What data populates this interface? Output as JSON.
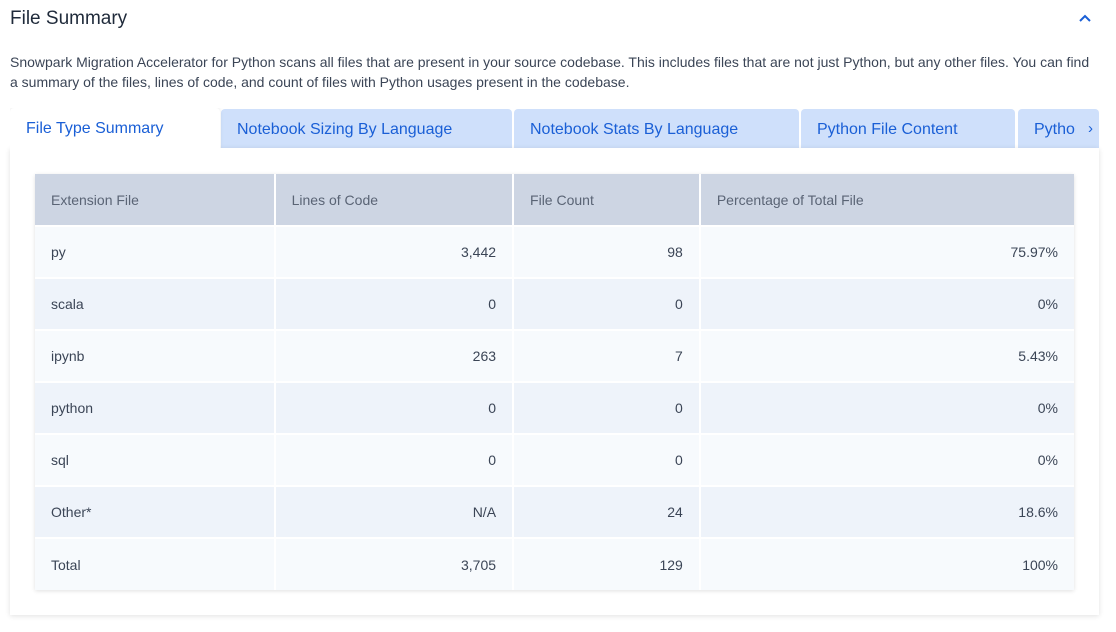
{
  "section": {
    "title": "File Summary",
    "collapse_icon": "chevron-up-icon",
    "description": "Snowpark Migration Accelerator for Python scans all files that are present in your source codebase. This includes files that are not just Python, but any other files. You can find a summary of the files, lines of code, and count of files with Python usages present in the codebase."
  },
  "tabs": [
    {
      "label": "File Type Summary",
      "active": true
    },
    {
      "label": "Notebook Sizing By Language"
    },
    {
      "label": "Notebook Stats By Language"
    },
    {
      "label": "Python File Content"
    },
    {
      "label": "Python"
    }
  ],
  "table": {
    "headers": [
      "Extension File",
      "Lines of Code",
      "File Count",
      "Percentage of Total File"
    ],
    "rows": [
      [
        "py",
        "3,442",
        "98",
        "75.97%"
      ],
      [
        "scala",
        "0",
        "0",
        "0%"
      ],
      [
        "ipynb",
        "263",
        "7",
        "5.43%"
      ],
      [
        "python",
        "0",
        "0",
        "0%"
      ],
      [
        "sql",
        "0",
        "0",
        "0%"
      ],
      [
        "Other*",
        "N/A",
        "24",
        "18.6%"
      ],
      [
        "Total",
        "3,705",
        "129",
        "100%"
      ]
    ]
  },
  "colors": {
    "accent": "#1a5fd6",
    "tab_bg": "#cfe0fb",
    "header_bg": "#cdd5e3"
  }
}
